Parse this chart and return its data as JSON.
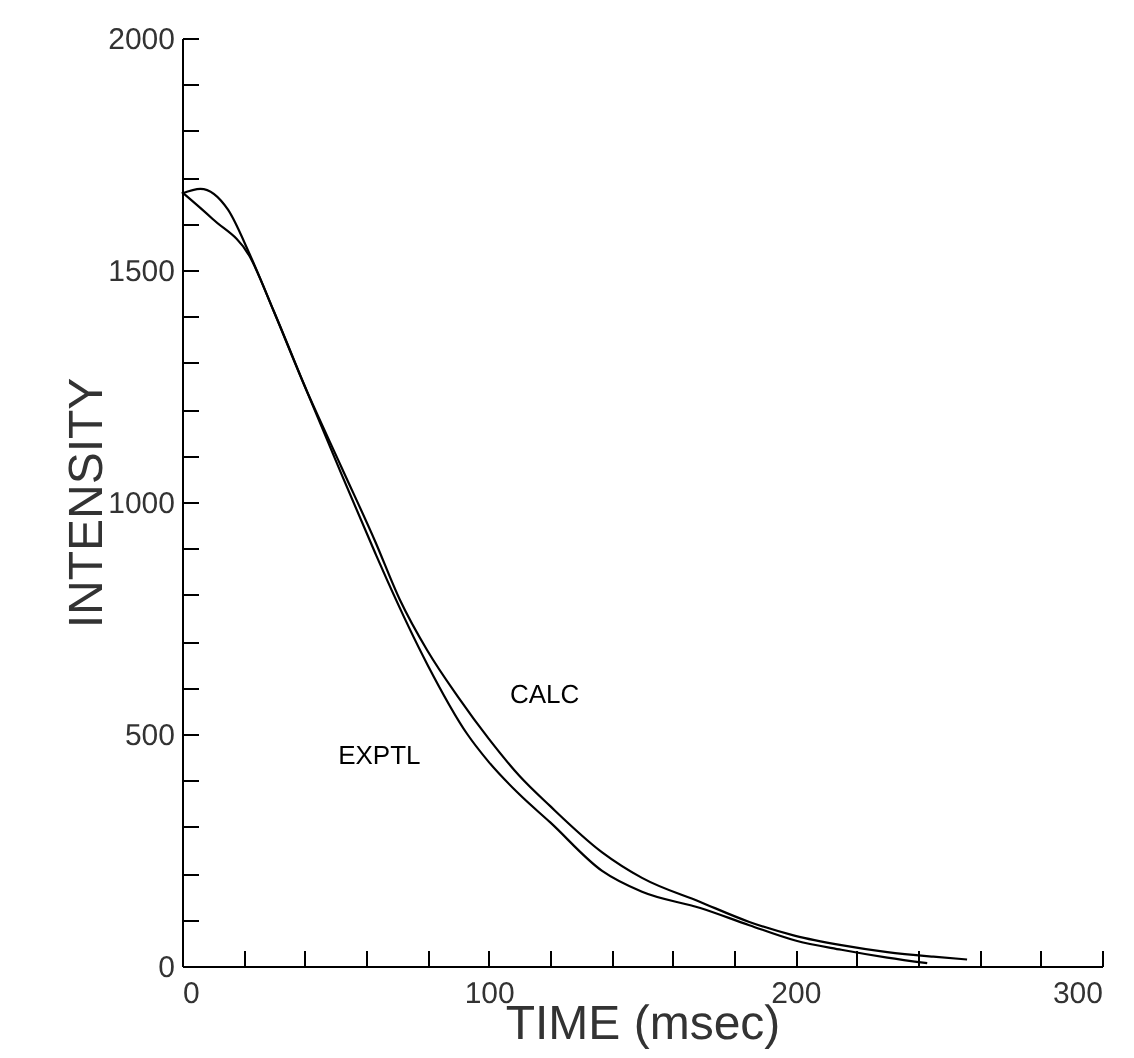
{
  "chart_data": {
    "type": "line",
    "xlabel": "TIME (msec)",
    "ylabel": "INTENSITY",
    "xlim": [
      0,
      300
    ],
    "ylim": [
      0,
      2000
    ],
    "xticks": [
      0,
      {
        "value": 20,
        "label": null
      },
      {
        "value": 40,
        "label": null
      },
      {
        "value": 60,
        "label": null
      },
      {
        "value": 80,
        "label": null
      },
      100,
      {
        "value": 120,
        "label": null
      },
      {
        "value": 140,
        "label": null
      },
      {
        "value": 160,
        "label": null
      },
      {
        "value": 180,
        "label": null
      },
      200,
      {
        "value": 220,
        "label": null
      },
      {
        "value": 240,
        "label": null
      },
      {
        "value": 260,
        "label": null
      },
      {
        "value": 280,
        "label": null
      },
      300
    ],
    "yticks": [
      0,
      {
        "value": 100,
        "label": null
      },
      {
        "value": 200,
        "label": null
      },
      {
        "value": 300,
        "label": null
      },
      {
        "value": 400,
        "label": null
      },
      500,
      {
        "value": 600,
        "label": null
      },
      {
        "value": 700,
        "label": null
      },
      {
        "value": 800,
        "label": null
      },
      {
        "value": 900,
        "label": null
      },
      1000,
      {
        "value": 1100,
        "label": null
      },
      {
        "value": 1200,
        "label": null
      },
      {
        "value": 1300,
        "label": null
      },
      {
        "value": 1400,
        "label": null
      },
      1500,
      {
        "value": 1600,
        "label": null
      },
      {
        "value": 1700,
        "label": null
      },
      {
        "value": 1800,
        "label": null
      },
      {
        "value": 1900,
        "label": null
      },
      2000
    ],
    "grid": false,
    "marker": "none",
    "line_style": "solid",
    "series": [
      {
        "name": "CALC",
        "color": "#000000",
        "x": [
          0,
          6,
          15,
          22,
          30,
          40,
          52,
          63,
          71,
          80,
          90,
          100,
          110,
          120,
          137,
          150,
          169,
          185,
          200,
          215,
          230,
          245,
          256
        ],
        "values": [
          1665,
          1675,
          1630,
          1535,
          1410,
          1250,
          1075,
          915,
          790,
          680,
          580,
          490,
          410,
          345,
          245,
          190,
          138,
          95,
          65,
          45,
          30,
          20,
          14
        ]
      },
      {
        "name": "EXPTL",
        "color": "#000000",
        "x": [
          0,
          10,
          22,
          30,
          40,
          52,
          63,
          67,
          80,
          93,
          100,
          110,
          120,
          137,
          150,
          169,
          185,
          200,
          215,
          230,
          243
        ],
        "values": [
          1668,
          1610,
          1530,
          1410,
          1250,
          1060,
          890,
          830,
          650,
          500,
          440,
          370,
          310,
          205,
          160,
          125,
          88,
          55,
          35,
          18,
          6
        ]
      }
    ]
  }
}
